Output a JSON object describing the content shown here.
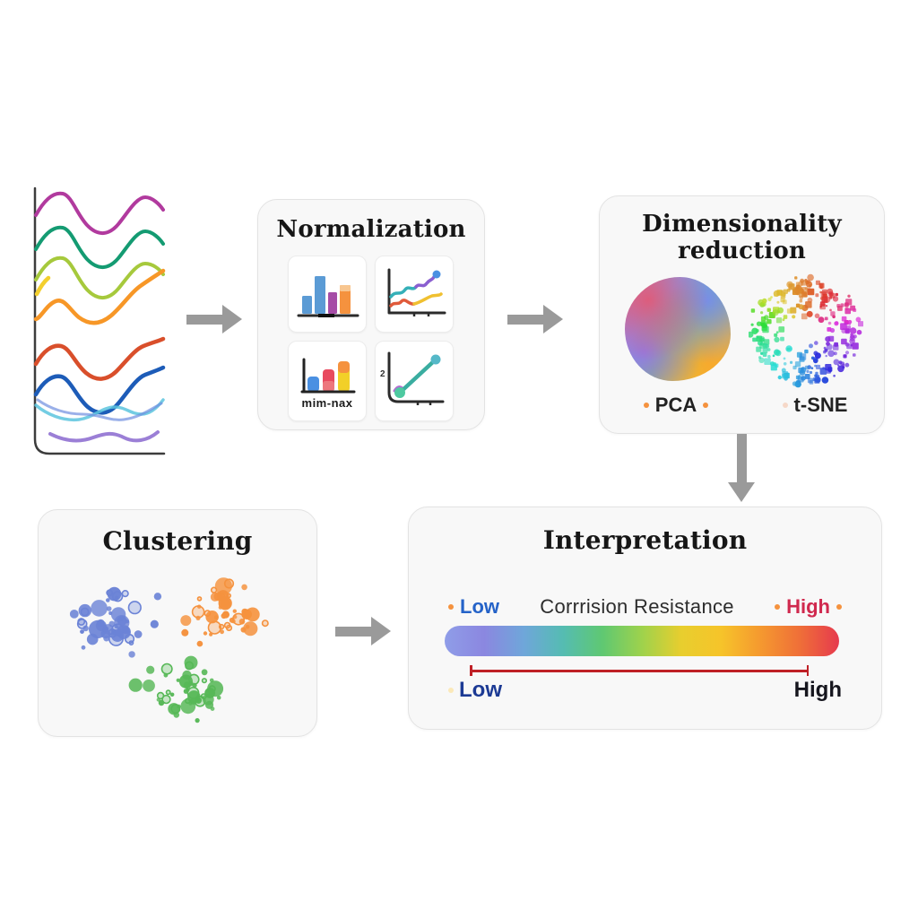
{
  "normalization": {
    "title": "Normalization",
    "minmax_label": "mim-nax"
  },
  "dimensionality": {
    "title_line1": "Dimensionality",
    "title_line2": "reduction",
    "pca_label": "PCA",
    "tsne_label": "t-SNE"
  },
  "clustering": {
    "title": "Clustering",
    "cluster_colors": {
      "blue": "#6b83d6",
      "orange": "#f5923e",
      "green": "#57b857"
    }
  },
  "interpretation": {
    "title": "Interpretation",
    "axis_label": "Corrrision Resistance",
    "low_label": "Low",
    "high_label": "High",
    "bottom_low_label": "Low",
    "bottom_high_label": "High",
    "gradient_stops": [
      "#8f9de8",
      "#8b87e0",
      "#6fa6da",
      "#55bcb2",
      "#5fc872",
      "#9ed24c",
      "#e8ce2e",
      "#f6c42a",
      "#f5992f",
      "#ef6f38",
      "#e63a4e"
    ]
  },
  "waves": {
    "colors": [
      "#b13a9e",
      "#149b72",
      "#a6c93c",
      "#f3cf2e",
      "#f79727",
      "#d94f2b",
      "#1d5cb8",
      "#5cc4de",
      "#6f8fe0",
      "#9b7fd6"
    ]
  },
  "colors": {
    "arrow": "#9a9a9a",
    "box_background": "#f8f8f8",
    "box_border": "#e3e3e3",
    "title_text": "#161616",
    "low_blue": "#2563c8",
    "high_red": "#d0294e",
    "bottom_low_navy": "#1c3a94",
    "bottom_high_dark": "#16161e",
    "accent_dot_orange": "#f5923e",
    "tsne_dot_pink": "#f6d8c8",
    "red_axis_line": "#bf2026"
  }
}
